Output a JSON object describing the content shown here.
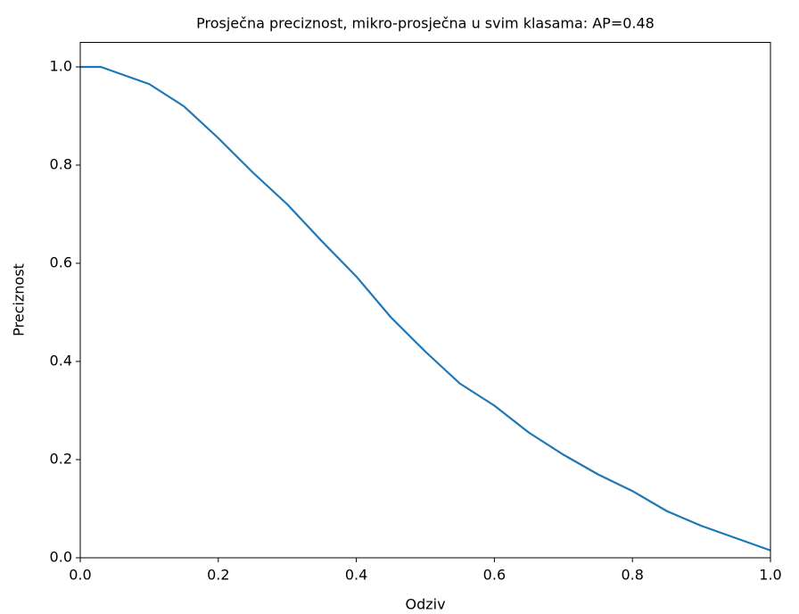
{
  "chart_data": {
    "type": "line",
    "title": "Prosječna preciznost, mikro-prosječna u svim klasama: AP=0.48",
    "x_label": "Odziv",
    "y_label": "Preciznost",
    "x": [
      0,
      0.03,
      0.05,
      0.1,
      0.15,
      0.2,
      0.25,
      0.3,
      0.35,
      0.4,
      0.45,
      0.5,
      0.55,
      0.6,
      0.65,
      0.7,
      0.75,
      0.8,
      0.85,
      0.9,
      0.95,
      1.0
    ],
    "series": [
      {
        "name": "Preciznost",
        "color": "#1f77b4",
        "values": [
          1.0,
          1.0,
          0.99,
          0.965,
          0.92,
          0.855,
          0.785,
          0.72,
          0.645,
          0.573,
          0.49,
          0.42,
          0.355,
          0.31,
          0.255,
          0.21,
          0.17,
          0.136,
          0.095,
          0.065,
          0.04,
          0.015
        ]
      }
    ],
    "xlim": [
      0,
      1.0
    ],
    "ylim": [
      0,
      1.05
    ],
    "xticks": [
      {
        "value": 0,
        "label": "0.0"
      },
      0.2,
      0.4,
      0.6,
      0.8,
      {
        "value": 1,
        "label": "1.0"
      }
    ],
    "yticks": [
      {
        "value": 0,
        "label": "0.0"
      },
      0.2,
      0.4,
      0.6,
      0.8,
      {
        "value": 1,
        "label": "1.0"
      }
    ],
    "grid": false
  }
}
